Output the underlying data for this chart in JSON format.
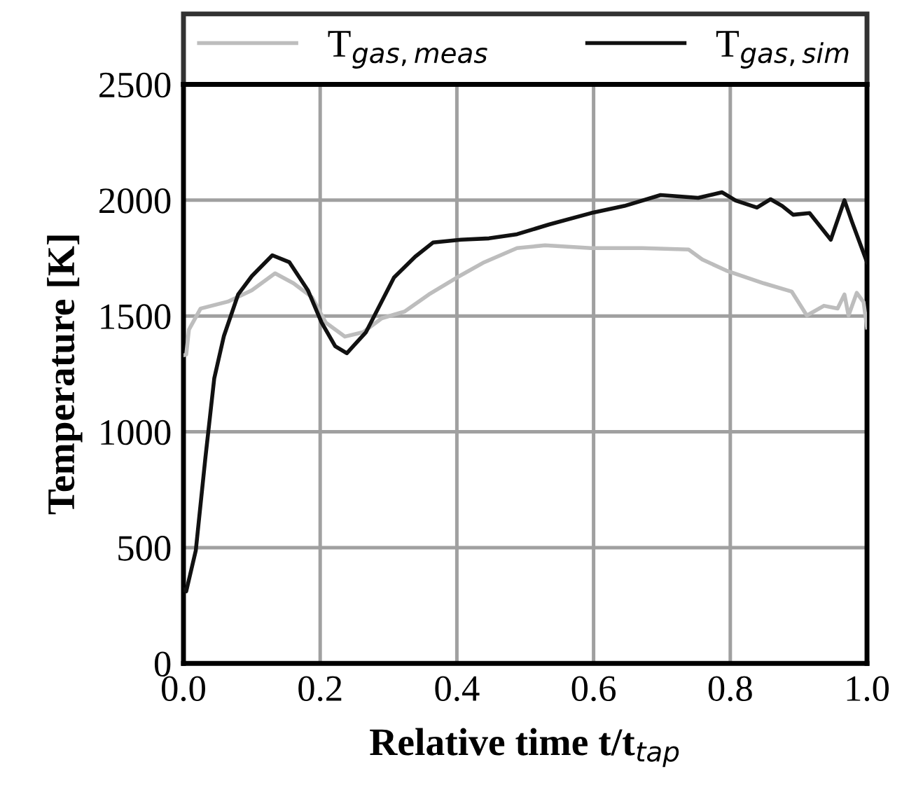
{
  "chart_data": {
    "type": "line",
    "xlabel": "Relative time t/t$_{tap}$",
    "ylabel": "Temperature [K]",
    "xlim": [
      0,
      1
    ],
    "ylim": [
      0,
      2500
    ],
    "xticks": [
      {
        "value": 0,
        "label": "0.0"
      },
      {
        "value": 0.2,
        "label": "0.2"
      },
      {
        "value": 0.4,
        "label": "0.4"
      },
      {
        "value": 0.6,
        "label": "0.6"
      },
      {
        "value": 0.8,
        "label": "0.8"
      },
      {
        "value": 1,
        "label": "1.0"
      }
    ],
    "yticks": [
      0,
      500,
      1000,
      1500,
      2000,
      2500
    ],
    "grid": true,
    "legend": "top",
    "marker": "none",
    "line_style": "solid",
    "series": [
      {
        "name": "T$_{gas,meas}$",
        "color": "#bdbdbd",
        "x": [
          0,
          0.004,
          0.008,
          0.025,
          0.065,
          0.1,
          0.134,
          0.161,
          0.188,
          0.208,
          0.236,
          0.263,
          0.29,
          0.324,
          0.359,
          0.4,
          0.44,
          0.488,
          0.529,
          0.596,
          0.671,
          0.739,
          0.759,
          0.794,
          0.849,
          0.89,
          0.912,
          0.937,
          0.957,
          0.967,
          0.973,
          0.985,
          0.995,
          1.0
        ],
        "values": [
          1330,
          1333,
          1441,
          1532,
          1562,
          1611,
          1684,
          1641,
          1581,
          1472,
          1411,
          1430,
          1490,
          1520,
          1593,
          1666,
          1732,
          1793,
          1805,
          1793,
          1793,
          1787,
          1744,
          1696,
          1641,
          1605,
          1502,
          1544,
          1532,
          1593,
          1502,
          1600,
          1560,
          1450
        ]
      },
      {
        "name": "T$_{gas,sim}$",
        "color": "#111111",
        "x": [
          0,
          0.004,
          0.018,
          0.032,
          0.045,
          0.059,
          0.08,
          0.1,
          0.13,
          0.155,
          0.182,
          0.202,
          0.222,
          0.239,
          0.267,
          0.308,
          0.339,
          0.365,
          0.406,
          0.447,
          0.488,
          0.535,
          0.596,
          0.645,
          0.698,
          0.753,
          0.788,
          0.808,
          0.839,
          0.859,
          0.876,
          0.892,
          0.916,
          0.947,
          0.967,
          0.978,
          1.0
        ],
        "values": [
          320,
          311,
          487,
          886,
          1230,
          1412,
          1593,
          1672,
          1762,
          1732,
          1611,
          1472,
          1369,
          1339,
          1430,
          1666,
          1756,
          1817,
          1829,
          1835,
          1853,
          1895,
          1944,
          1975,
          2022,
          2010,
          2034,
          1998,
          1968,
          2004,
          1975,
          1937,
          1944,
          1829,
          2000,
          1907,
          1732
        ]
      }
    ]
  }
}
